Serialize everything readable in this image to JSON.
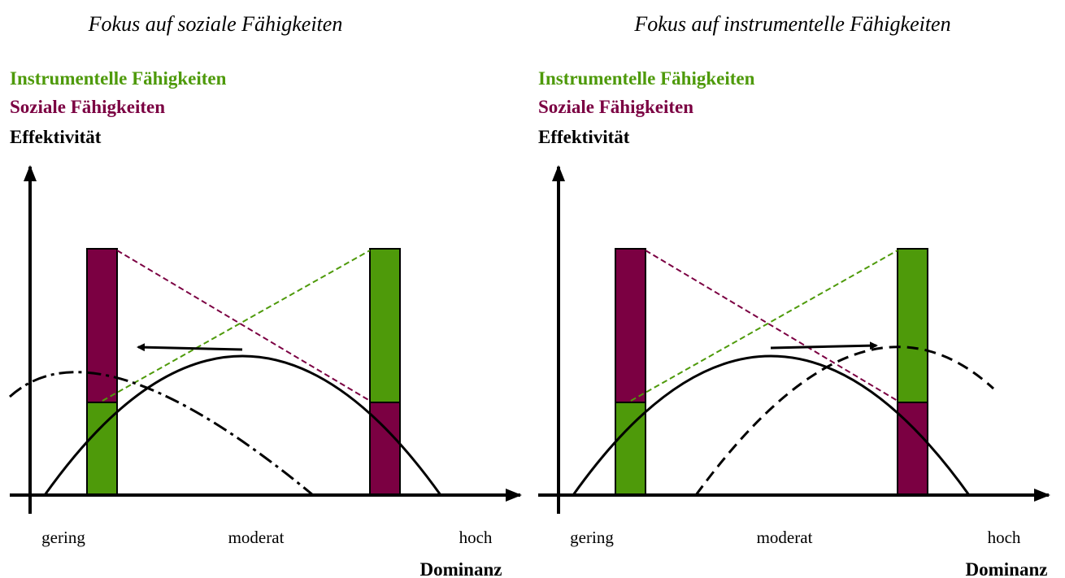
{
  "panels": [
    {
      "title": "Fokus auf soziale Fähigkeiten",
      "legend": [
        "Instrumentelle Fähigkeiten",
        "Soziale Fähigkeiten",
        "Effektivität"
      ],
      "x_labels": [
        "gering",
        "moderat",
        "hoch"
      ],
      "x_axis_label": "Dominanz"
    },
    {
      "title": "Fokus auf instrumentelle Fähigkeiten",
      "legend": [
        "Instrumentelle Fähigkeiten",
        "Soziale Fähigkeiten",
        "Effektivität"
      ],
      "x_labels": [
        "gering",
        "moderat",
        "hoch"
      ],
      "x_axis_label": "Dominanz"
    }
  ]
}
